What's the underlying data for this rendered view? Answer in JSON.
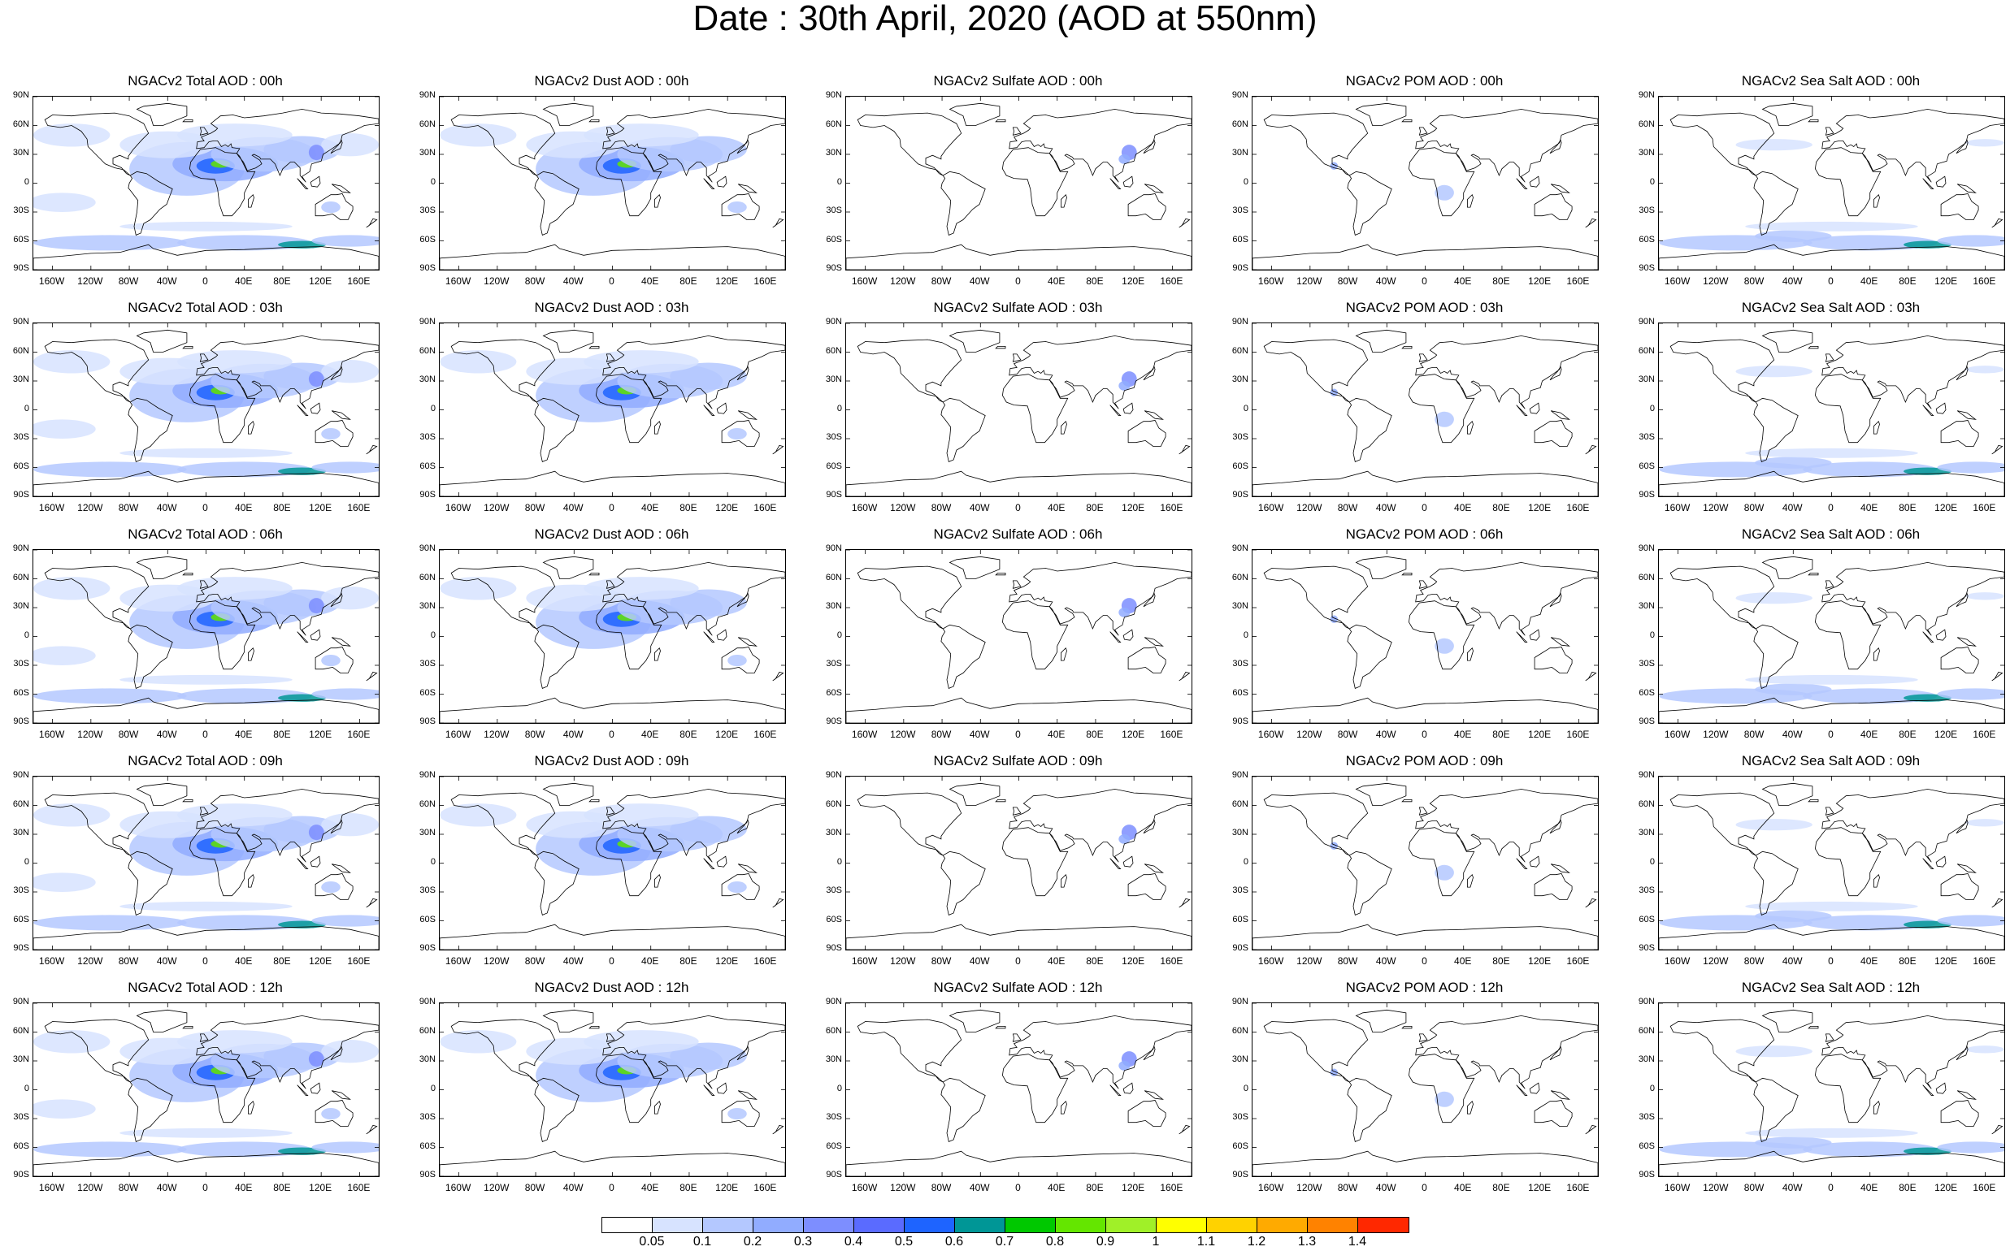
{
  "title": "Date : 30th April, 2020 (AOD at 550nm)",
  "species": [
    {
      "key": "total",
      "color_bias": 1.0
    },
    {
      "key": "dust",
      "color_bias": 0.85
    },
    {
      "key": "sulfate",
      "color_bias": 0.08
    },
    {
      "key": "pom",
      "color_bias": 0.04
    },
    {
      "key": "seasalt",
      "color_bias": 0.6
    }
  ],
  "panel_titles": [
    [
      "NGACv2 Total AOD : 00h",
      "NGACv2 Dust AOD : 00h",
      "NGACv2 Sulfate AOD : 00h",
      "NGACv2 POM AOD : 00h",
      "NGACv2 Sea Salt AOD : 00h"
    ],
    [
      "NGACv2 Total AOD : 03h",
      "NGACv2 Dust AOD : 03h",
      "NGACv2 Sulfate AOD : 03h",
      "NGACv2 POM AOD : 03h",
      "NGACv2 Sea Salt AOD : 03h"
    ],
    [
      "NGACv2 Total AOD : 06h",
      "NGACv2 Dust AOD : 06h",
      "NGACv2 Sulfate AOD : 06h",
      "NGACv2 POM AOD : 06h",
      "NGACv2 Sea Salt AOD : 06h"
    ],
    [
      "NGACv2 Total AOD : 09h",
      "NGACv2 Dust AOD : 09h",
      "NGACv2 Sulfate AOD : 09h",
      "NGACv2 POM AOD : 09h",
      "NGACv2 Sea Salt  AOD : 09h"
    ],
    [
      "NGACv2 Total AOD  : 12h",
      "NGACv2 Dust AOD : 12h",
      "NGACv2 Sulfate AOD : 12h",
      "NGACv2 POM  AOD : 12h",
      "NGACv2 Sea Salt  AOD : 12h"
    ]
  ],
  "lat_labels": [
    "90N",
    "60N",
    "30N",
    "0",
    "30S",
    "60S",
    "90S"
  ],
  "lon_labels": [
    "160W",
    "120W",
    "80W",
    "40W",
    "0",
    "40E",
    "80E",
    "120E",
    "160E"
  ],
  "lon_values": [
    -160,
    -120,
    -80,
    -40,
    0,
    40,
    80,
    120,
    160
  ],
  "lat_values": [
    90,
    60,
    30,
    0,
    -30,
    -60,
    -90
  ],
  "colorbar": {
    "colors": [
      "#ffffff",
      "#d7e3ff",
      "#b4c8ff",
      "#91acff",
      "#7d8eff",
      "#5a6bff",
      "#1e64ff",
      "#009696",
      "#00c800",
      "#64e600",
      "#a0f028",
      "#ffff00",
      "#ffd200",
      "#ffaa00",
      "#ff8200",
      "#ff2800"
    ],
    "labels": [
      "0.05",
      "0.1",
      "0.2",
      "0.3",
      "0.4",
      "0.5",
      "0.6",
      "0.7",
      "0.8",
      "0.9",
      "1",
      "1.1",
      "1.2",
      "1.3",
      "1.4"
    ]
  }
}
